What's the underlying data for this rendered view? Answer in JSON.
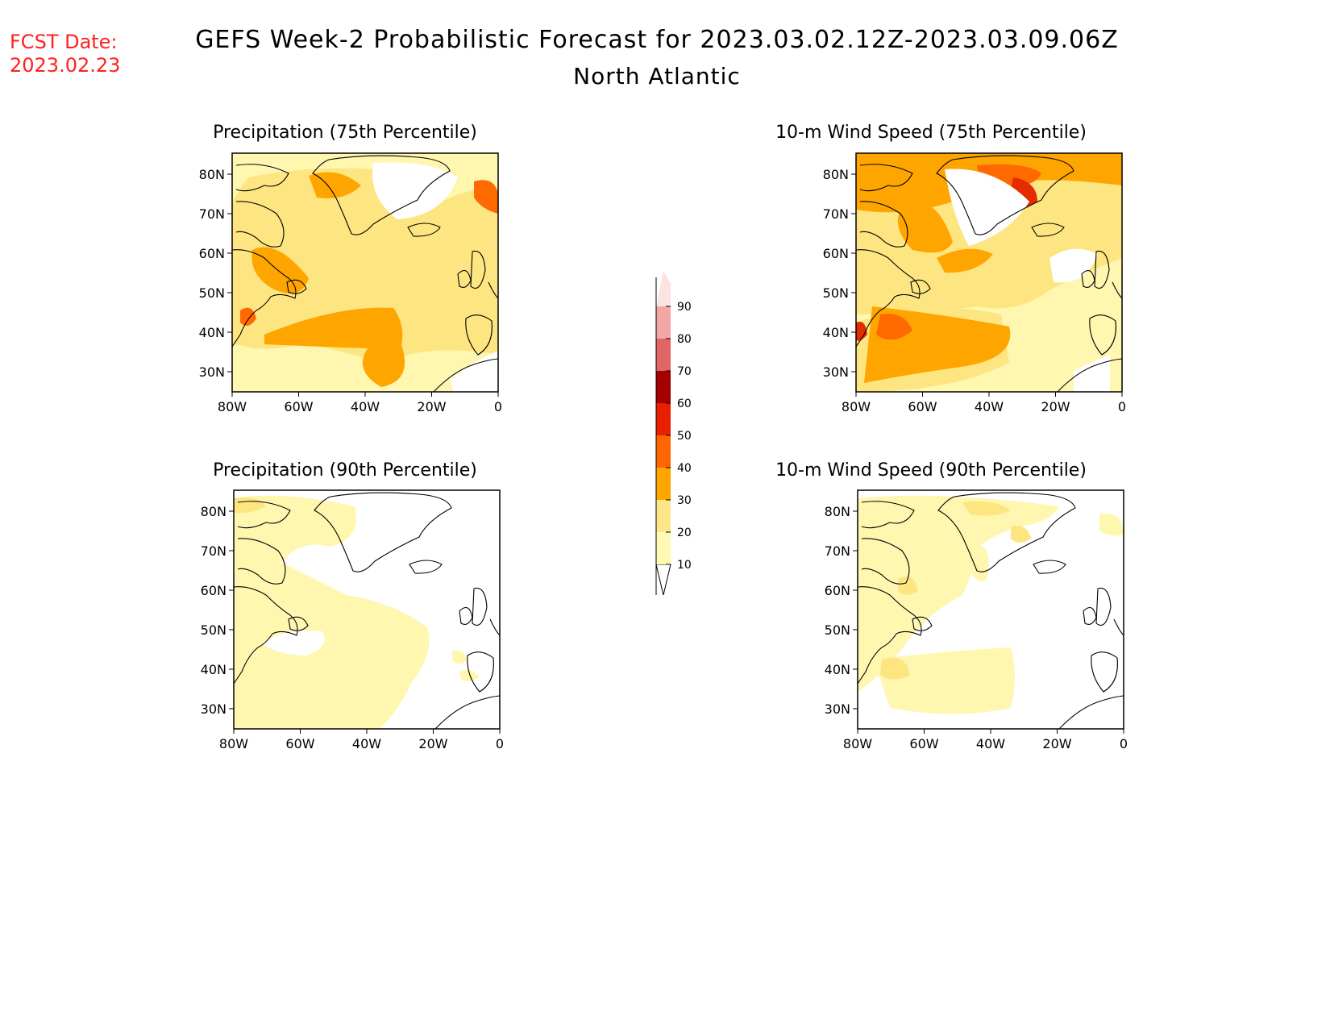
{
  "header": {
    "fcst_label": "FCST Date:",
    "fcst_date": "2023.02.23",
    "title": "GEFS Week-2 Probabilistic Forecast for 2023.03.02.12Z-2023.03.09.06Z",
    "region": "North Atlantic"
  },
  "panels": [
    {
      "id": "precip75",
      "title": "Precipitation (75th Percentile)"
    },
    {
      "id": "wind75",
      "title": "10-m Wind Speed (75th Percentile)"
    },
    {
      "id": "precip90",
      "title": "Precipitation (90th Percentile)"
    },
    {
      "id": "wind90",
      "title": "10-m Wind Speed (90th Percentile)"
    }
  ],
  "axes": {
    "lat_labels": [
      "80N",
      "70N",
      "60N",
      "50N",
      "40N",
      "30N"
    ],
    "lon_labels": [
      "80W",
      "60W",
      "40W",
      "20W",
      "0"
    ]
  },
  "colorbar": {
    "levels": [
      "10",
      "20",
      "30",
      "40",
      "50",
      "60",
      "70",
      "80",
      "90"
    ],
    "colors": [
      "#fff9b3",
      "#fde68a",
      "#ffa500",
      "#ff6600",
      "#e82000",
      "#a50000",
      "#e06666",
      "#f4a5a5",
      "#fde2e2"
    ]
  },
  "shading": {
    "level10": "#fff6b0",
    "level20": "#fde581",
    "level30": "#ffa500",
    "level40": "#ff6a00",
    "level50": "#e52b00"
  }
}
